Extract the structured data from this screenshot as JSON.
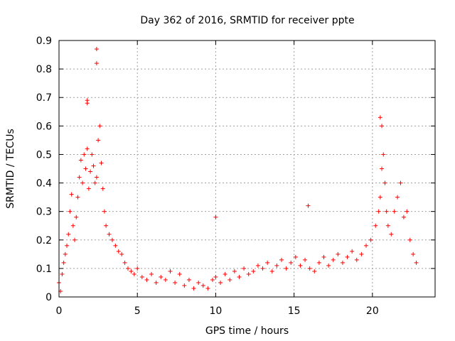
{
  "chart_data": {
    "type": "scatter",
    "title": "Day 362 of 2016, SRMTID for receiver ppte",
    "xlabel": "GPS time / hours",
    "ylabel": "SRMTID / TECUs",
    "xlim": [
      0,
      24
    ],
    "ylim": [
      0,
      0.9
    ],
    "xticks": [
      0,
      5,
      10,
      15,
      20
    ],
    "yticks": [
      0,
      0.1,
      0.2,
      0.3,
      0.4,
      0.5,
      0.6,
      0.7,
      0.8,
      0.9
    ],
    "xtick_labels": [
      "0",
      "5",
      "10",
      "15",
      "20"
    ],
    "ytick_labels": [
      "0",
      "0.1",
      "0.2",
      "0.3",
      "0.4",
      "0.5",
      "0.6",
      "0.7",
      "0.8",
      "0.9"
    ],
    "grid": true,
    "marker": "plus",
    "color": "#ff0000",
    "envelope_description": "dense cloud of points; approximate series shape sampled below",
    "series": [
      {
        "name": "SRMTID",
        "x": [
          0.0,
          0.1,
          0.2,
          0.3,
          0.4,
          0.5,
          0.6,
          0.7,
          0.8,
          0.9,
          1.0,
          1.1,
          1.2,
          1.3,
          1.4,
          1.5,
          1.6,
          1.7,
          1.8,
          1.9,
          2.0,
          2.1,
          2.2,
          2.3,
          2.4,
          2.5,
          2.6,
          2.7,
          2.8,
          2.9,
          3.0,
          3.2,
          3.4,
          3.6,
          3.8,
          4.0,
          4.2,
          4.4,
          4.6,
          4.8,
          5.0,
          5.3,
          5.6,
          5.9,
          6.2,
          6.5,
          6.8,
          7.1,
          7.4,
          7.7,
          8.0,
          8.3,
          8.6,
          8.9,
          9.2,
          9.5,
          9.8,
          10.0,
          10.3,
          10.6,
          10.9,
          11.2,
          11.5,
          11.8,
          12.1,
          12.4,
          12.7,
          13.0,
          13.3,
          13.6,
          13.9,
          14.2,
          14.5,
          14.8,
          15.1,
          15.4,
          15.7,
          16.0,
          16.3,
          16.6,
          16.9,
          17.2,
          17.5,
          17.8,
          18.1,
          18.4,
          18.7,
          19.0,
          19.3,
          19.6,
          19.9,
          20.2,
          20.4,
          20.5,
          20.6,
          20.7,
          20.8,
          20.9,
          21.0,
          21.2,
          21.4,
          21.6,
          21.8,
          22.0,
          22.2,
          22.4,
          22.6,
          22.8,
          2.4,
          2.4,
          1.8,
          1.8,
          20.5,
          20.6,
          10.0,
          15.9
        ],
        "y": [
          0.05,
          0.02,
          0.08,
          0.12,
          0.15,
          0.18,
          0.22,
          0.3,
          0.36,
          0.25,
          0.2,
          0.28,
          0.35,
          0.42,
          0.48,
          0.4,
          0.5,
          0.45,
          0.52,
          0.38,
          0.44,
          0.5,
          0.46,
          0.4,
          0.42,
          0.55,
          0.6,
          0.47,
          0.38,
          0.3,
          0.25,
          0.22,
          0.2,
          0.18,
          0.16,
          0.15,
          0.12,
          0.1,
          0.09,
          0.08,
          0.1,
          0.07,
          0.06,
          0.08,
          0.05,
          0.07,
          0.06,
          0.09,
          0.05,
          0.08,
          0.04,
          0.06,
          0.03,
          0.05,
          0.04,
          0.03,
          0.06,
          0.07,
          0.05,
          0.08,
          0.06,
          0.09,
          0.07,
          0.1,
          0.08,
          0.09,
          0.11,
          0.1,
          0.12,
          0.09,
          0.11,
          0.13,
          0.1,
          0.12,
          0.14,
          0.11,
          0.13,
          0.1,
          0.09,
          0.12,
          0.14,
          0.11,
          0.13,
          0.15,
          0.12,
          0.14,
          0.16,
          0.13,
          0.15,
          0.18,
          0.2,
          0.25,
          0.3,
          0.35,
          0.45,
          0.5,
          0.4,
          0.3,
          0.25,
          0.22,
          0.3,
          0.35,
          0.4,
          0.28,
          0.3,
          0.2,
          0.15,
          0.12,
          0.87,
          0.82,
          0.69,
          0.68,
          0.63,
          0.6,
          0.28,
          0.32
        ]
      }
    ]
  }
}
